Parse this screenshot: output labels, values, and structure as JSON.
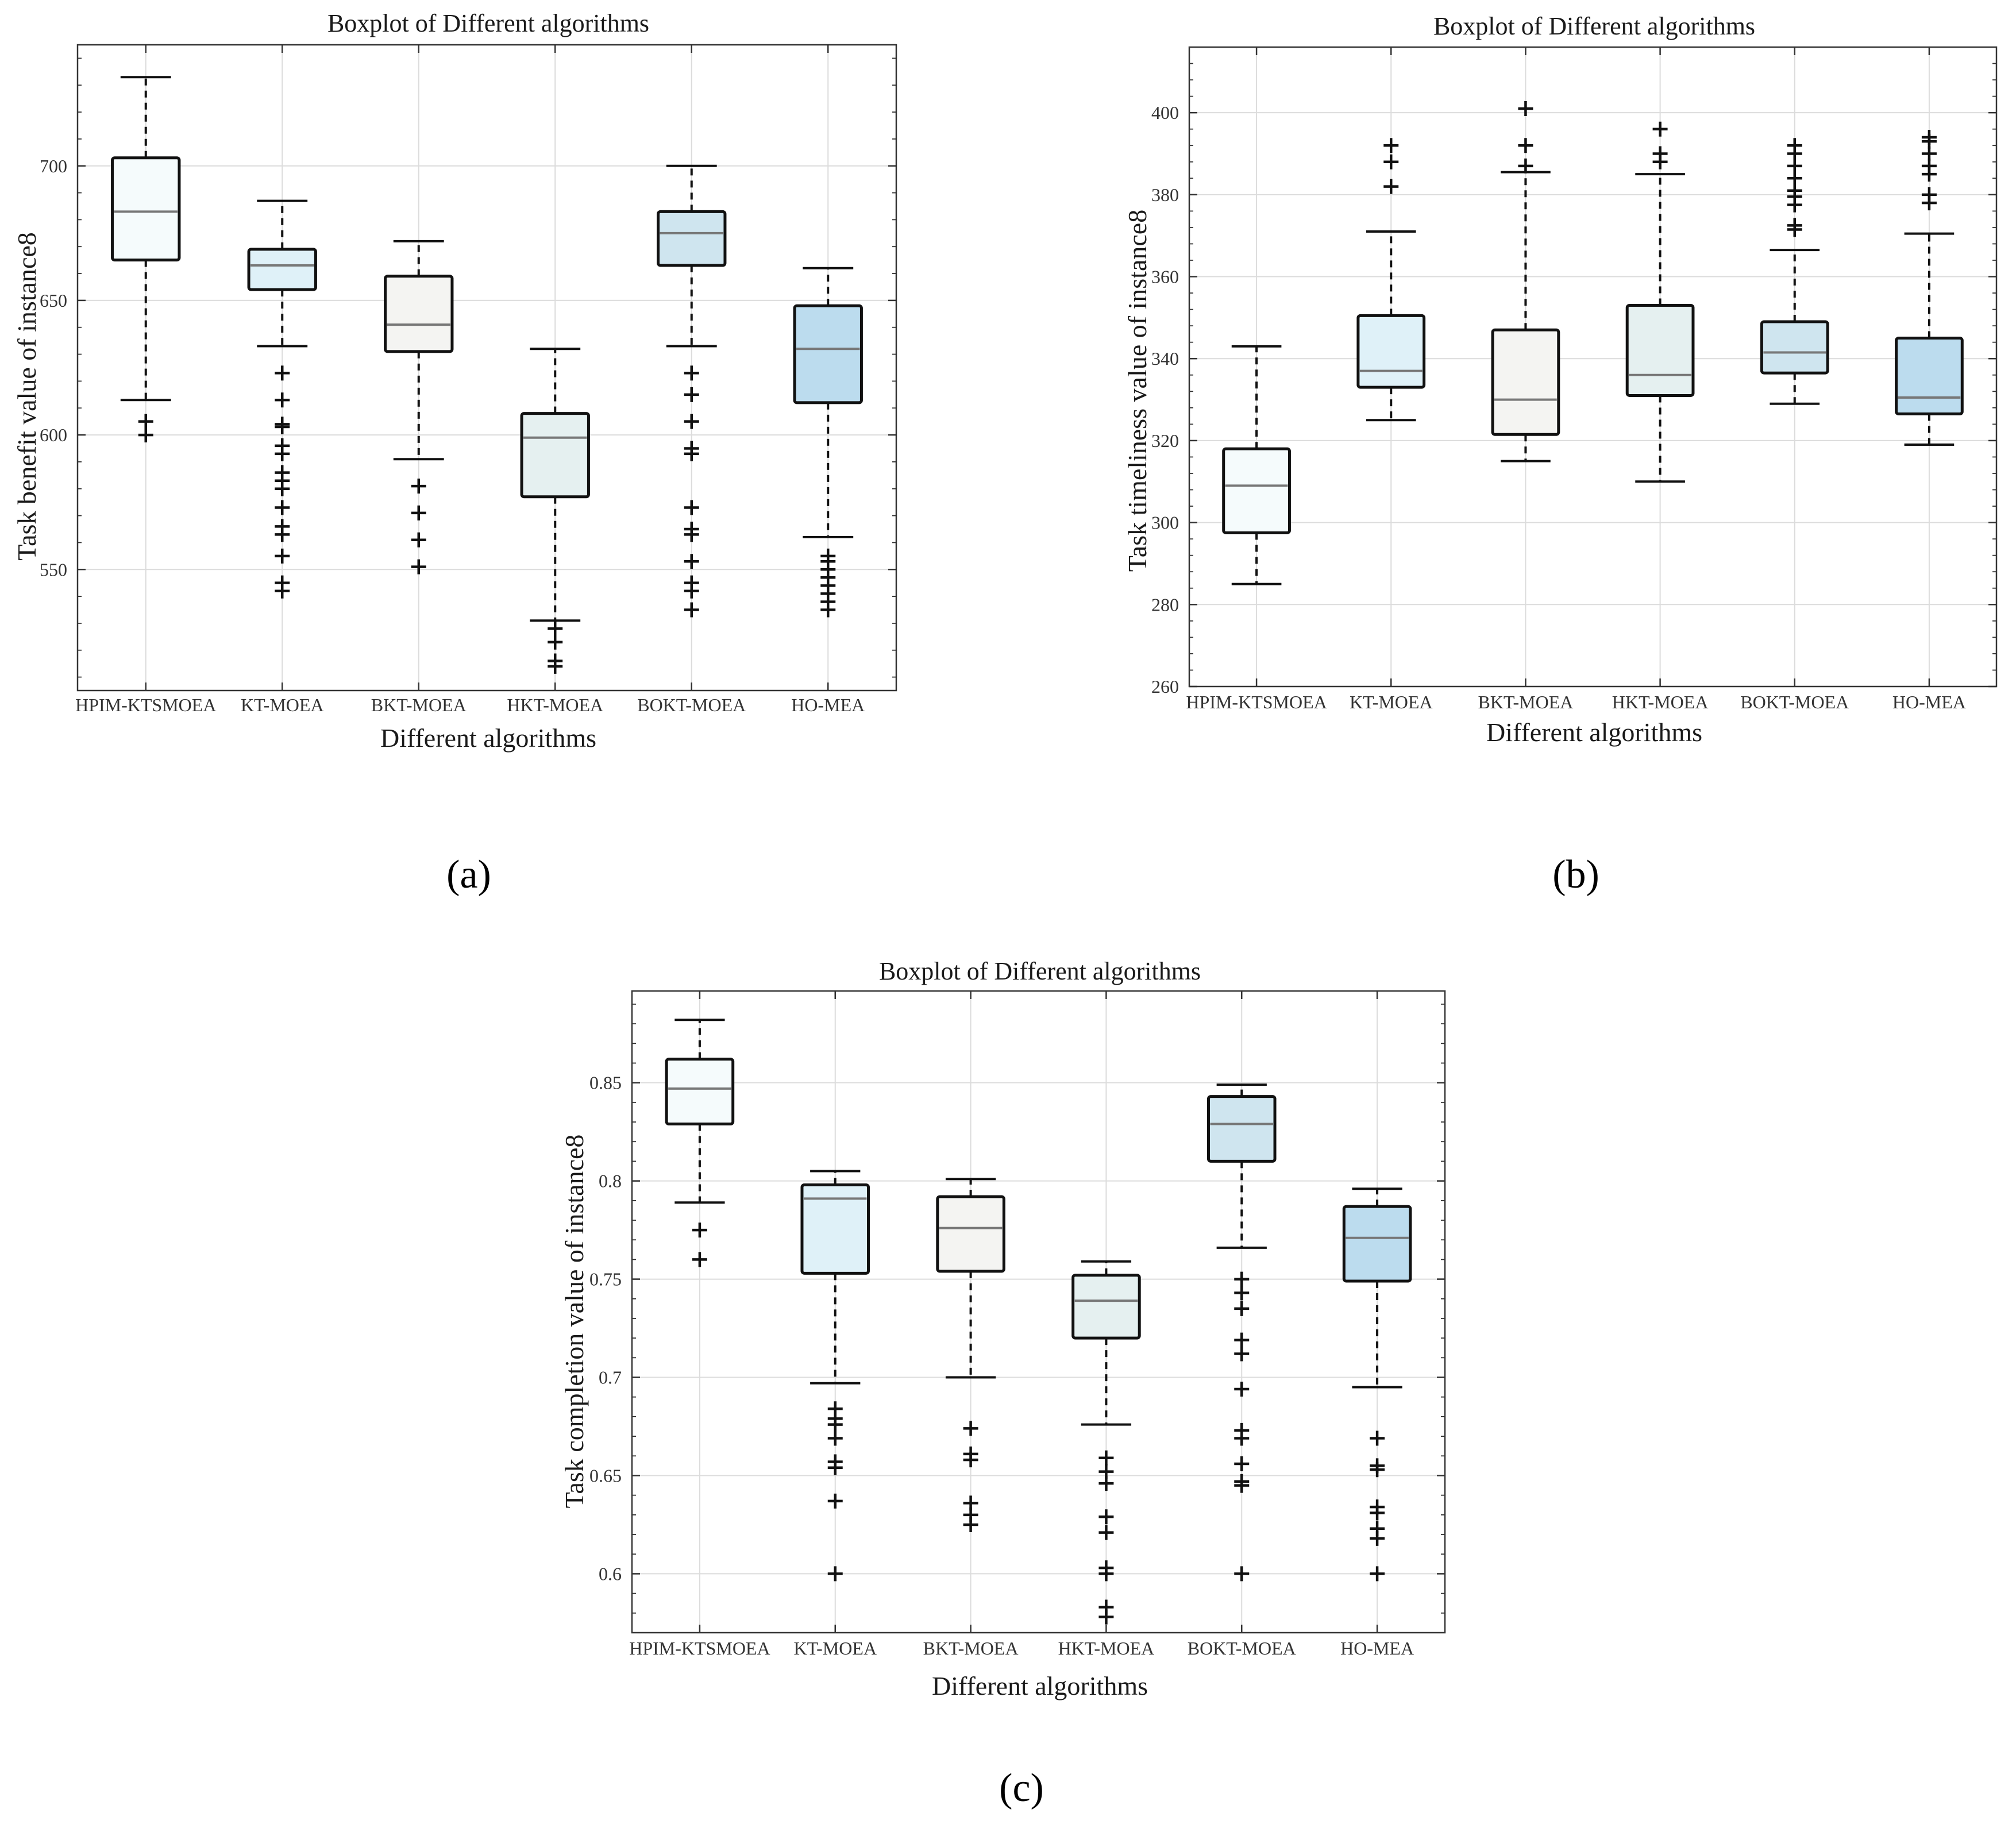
{
  "figure": {
    "panel_labels": [
      "(a)",
      "(b)",
      "(c)"
    ]
  },
  "chart_data": [
    {
      "type": "boxplot",
      "title": "Boxplot of Different algorithms",
      "xlabel": "Different algorithms",
      "ylabel": "Task benefit value of instance8",
      "categories": [
        "HPIM-KTSMOEA",
        "KT-MOEA",
        "BKT-MOEA",
        "HKT-MOEA",
        "BOKT-MOEA",
        "HO-MEA"
      ],
      "ylim": [
        505,
        745
      ],
      "yticks": [
        550,
        600,
        650,
        700
      ],
      "ytick_labels": [
        "550",
        "600",
        "650",
        "700"
      ],
      "box_colors": [
        "#f5fbfc",
        "#dff1f8",
        "#f4f4f2",
        "#e5f0f0",
        "#cfe5ef",
        "#bcdcee"
      ],
      "series": [
        {
          "name": "HPIM-KTSMOEA",
          "whisker_low": 613,
          "q1": 665,
          "median": 683,
          "q3": 703,
          "whisker_high": 733,
          "outliers": [
            600,
            605
          ]
        },
        {
          "name": "KT-MOEA",
          "whisker_low": 633,
          "q1": 654,
          "median": 663,
          "q3": 669,
          "whisker_high": 687,
          "outliers": [
            542,
            545,
            555,
            563,
            566,
            573,
            580,
            583,
            586,
            593,
            596,
            603,
            604,
            613,
            623
          ]
        },
        {
          "name": "BKT-MOEA",
          "whisker_low": 591,
          "q1": 631,
          "median": 641,
          "q3": 659,
          "whisker_high": 672,
          "outliers": [
            551,
            561,
            571,
            581
          ]
        },
        {
          "name": "HKT-MOEA",
          "whisker_low": 531,
          "q1": 577,
          "median": 599,
          "q3": 608,
          "whisker_high": 632,
          "outliers": [
            514,
            516,
            523,
            528
          ]
        },
        {
          "name": "BOKT-MOEA",
          "whisker_low": 633,
          "q1": 663,
          "median": 675,
          "q3": 683,
          "whisker_high": 700,
          "outliers": [
            535,
            542,
            545,
            553,
            563,
            565,
            573,
            593,
            595,
            605,
            615,
            623
          ]
        },
        {
          "name": "HO-MEA",
          "whisker_low": 562,
          "q1": 612,
          "median": 632,
          "q3": 648,
          "whisker_high": 662,
          "outliers": [
            535,
            538,
            541,
            544,
            547,
            550,
            553,
            555
          ]
        }
      ]
    },
    {
      "type": "boxplot",
      "title": "Boxplot of Different algorithms",
      "xlabel": "Different algorithms",
      "ylabel": "Task timeliness value of instance8",
      "categories": [
        "HPIM-KTSMOEA",
        "KT-MOEA",
        "BKT-MOEA",
        "HKT-MOEA",
        "BOKT-MOEA",
        "HO-MEA"
      ],
      "ylim": [
        260,
        416
      ],
      "yticks": [
        260,
        280,
        300,
        320,
        340,
        360,
        380,
        400
      ],
      "ytick_labels": [
        "260",
        "280",
        "300",
        "320",
        "340",
        "360",
        "380",
        "400"
      ],
      "box_colors": [
        "#f5fbfc",
        "#dff1f8",
        "#f4f4f2",
        "#e5f0f0",
        "#cfe5ef",
        "#bcdcee"
      ],
      "series": [
        {
          "name": "HPIM-KTSMOEA",
          "whisker_low": 285,
          "q1": 297.5,
          "median": 309,
          "q3": 318,
          "whisker_high": 343,
          "outliers": []
        },
        {
          "name": "KT-MOEA",
          "whisker_low": 325,
          "q1": 333,
          "median": 337,
          "q3": 350.5,
          "whisker_high": 371,
          "outliers": [
            382,
            388,
            392
          ]
        },
        {
          "name": "BKT-MOEA",
          "whisker_low": 315,
          "q1": 321.5,
          "median": 330,
          "q3": 347,
          "whisker_high": 385.5,
          "outliers": [
            387,
            392,
            401
          ]
        },
        {
          "name": "HKT-MOEA",
          "whisker_low": 310,
          "q1": 331,
          "median": 336,
          "q3": 353,
          "whisker_high": 385,
          "outliers": [
            388,
            390,
            396
          ]
        },
        {
          "name": "BOKT-MOEA",
          "whisker_low": 329,
          "q1": 336.5,
          "median": 341.5,
          "q3": 349,
          "whisker_high": 366.5,
          "outliers": [
            371.5,
            372.5,
            377.5,
            379.5,
            381,
            384,
            387,
            390,
            392
          ]
        },
        {
          "name": "HO-MEA",
          "whisker_low": 319,
          "q1": 326.5,
          "median": 330.5,
          "q3": 345,
          "whisker_high": 370.5,
          "outliers": [
            378,
            380,
            385,
            387,
            390,
            393,
            394
          ]
        }
      ]
    },
    {
      "type": "boxplot",
      "title": "Boxplot of Different algorithms",
      "xlabel": "Different algorithms",
      "ylabel": "Task completion value of instance8",
      "categories": [
        "HPIM-KTSMOEA",
        "KT-MOEA",
        "BKT-MOEA",
        "HKT-MOEA",
        "BOKT-MOEA",
        "HO-MEA"
      ],
      "ylim": [
        0.57,
        0.8967
      ],
      "yticks": [
        0.6,
        0.65,
        0.7,
        0.75,
        0.8,
        0.85
      ],
      "ytick_labels": [
        "0.6",
        "0.65",
        "0.7",
        "0.75",
        "0.8",
        "0.85"
      ],
      "box_colors": [
        "#f5fbfc",
        "#dff1f8",
        "#f4f4f2",
        "#e5f0f0",
        "#cfe5ef",
        "#bcdcee"
      ],
      "series": [
        {
          "name": "HPIM-KTSMOEA",
          "whisker_low": 0.789,
          "q1": 0.829,
          "median": 0.847,
          "q3": 0.862,
          "whisker_high": 0.882,
          "outliers": [
            0.76,
            0.775
          ]
        },
        {
          "name": "KT-MOEA",
          "whisker_low": 0.697,
          "q1": 0.753,
          "median": 0.791,
          "q3": 0.798,
          "whisker_high": 0.805,
          "outliers": [
            0.6,
            0.637,
            0.654,
            0.657,
            0.669,
            0.676,
            0.679,
            0.684
          ]
        },
        {
          "name": "BKT-MOEA",
          "whisker_low": 0.7,
          "q1": 0.754,
          "median": 0.776,
          "q3": 0.792,
          "whisker_high": 0.801,
          "outliers": [
            0.625,
            0.63,
            0.636,
            0.658,
            0.661,
            0.674
          ]
        },
        {
          "name": "HKT-MOEA",
          "whisker_low": 0.676,
          "q1": 0.72,
          "median": 0.739,
          "q3": 0.752,
          "whisker_high": 0.759,
          "outliers": [
            0.578,
            0.583,
            0.6,
            0.603,
            0.621,
            0.629,
            0.646,
            0.652,
            0.659
          ]
        },
        {
          "name": "BOKT-MOEA",
          "whisker_low": 0.766,
          "q1": 0.81,
          "median": 0.829,
          "q3": 0.843,
          "whisker_high": 0.849,
          "outliers": [
            0.6,
            0.645,
            0.647,
            0.656,
            0.669,
            0.673,
            0.694,
            0.712,
            0.719,
            0.735,
            0.743,
            0.75
          ]
        },
        {
          "name": "HO-MEA",
          "whisker_low": 0.695,
          "q1": 0.749,
          "median": 0.771,
          "q3": 0.787,
          "whisker_high": 0.796,
          "outliers": [
            0.6,
            0.618,
            0.623,
            0.631,
            0.634,
            0.653,
            0.655,
            0.669
          ]
        }
      ]
    }
  ]
}
